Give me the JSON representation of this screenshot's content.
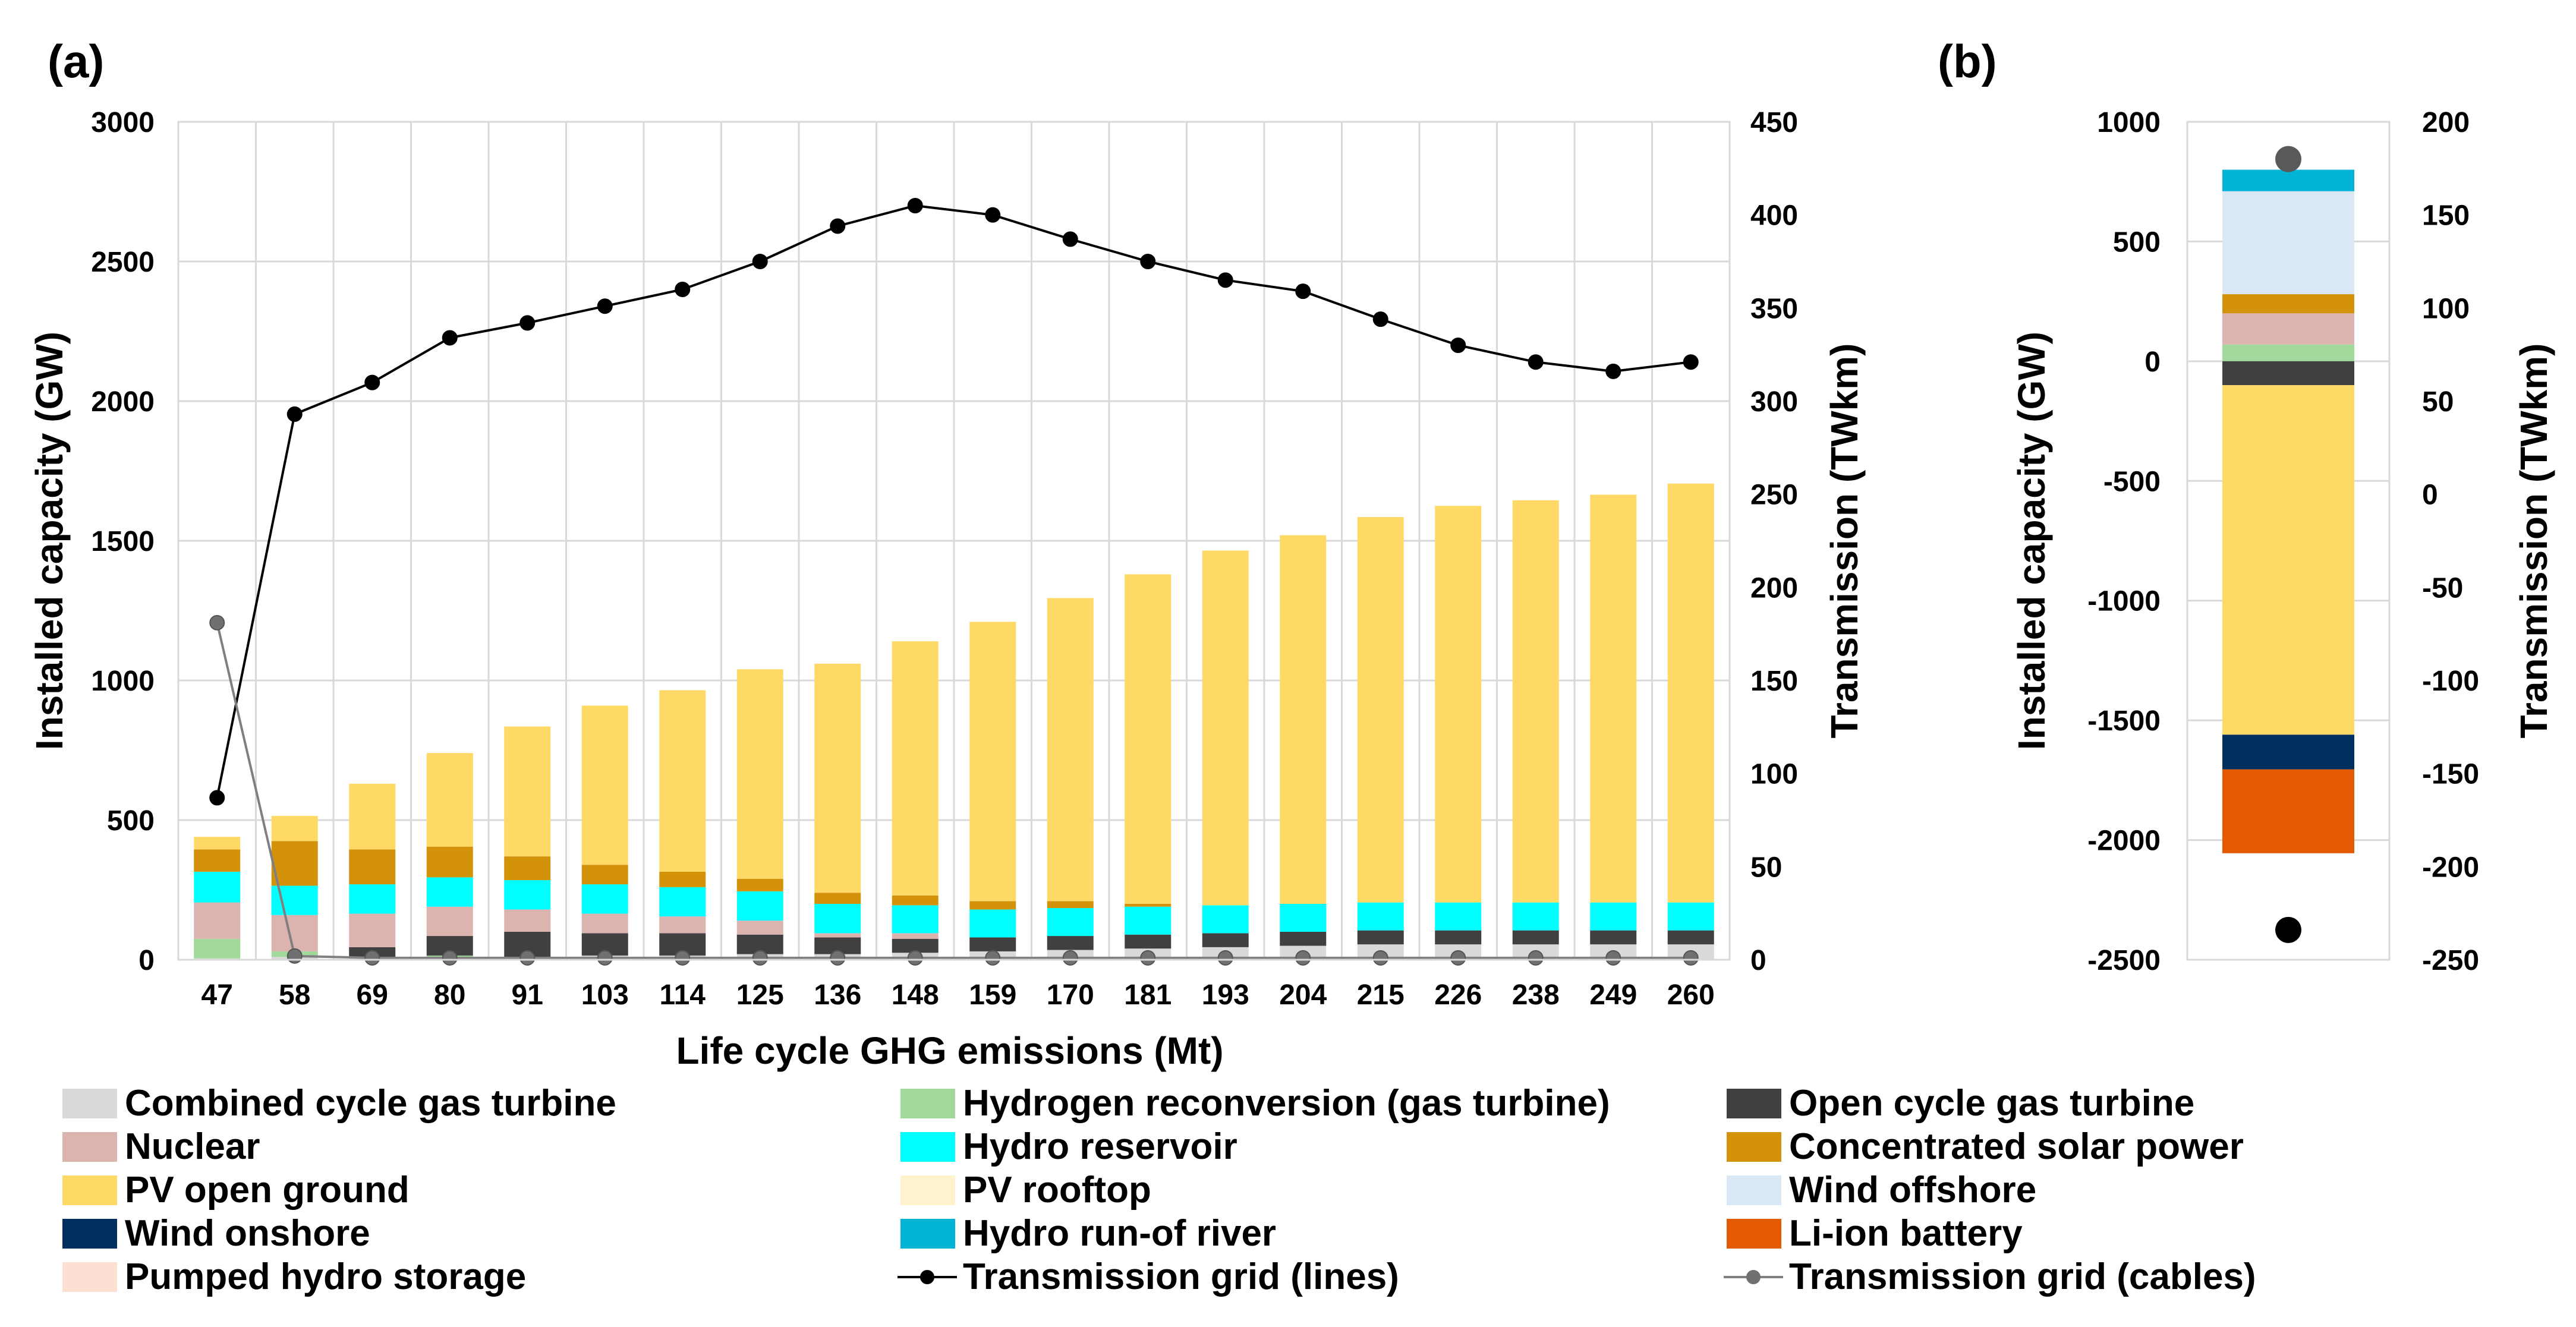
{
  "chart_data": [
    {
      "panel": "(a)",
      "type": "bar",
      "stacked": true,
      "xlabel": "Life cycle GHG emissions (Mt)",
      "ylabel": "Installed capacity (GW)",
      "y2label": "Transmission (TWkm)",
      "ylim": [
        0,
        3000
      ],
      "y2lim": [
        0,
        450
      ],
      "yticks": [
        "0",
        "500",
        "1000",
        "1500",
        "2000",
        "2500",
        "3000"
      ],
      "y2ticks": [
        "0",
        "50",
        "100",
        "150",
        "200",
        "250",
        "300",
        "350",
        "400",
        "450"
      ],
      "categories": [
        "47",
        "58",
        "69",
        "80",
        "91",
        "103",
        "114",
        "125",
        "136",
        "148",
        "159",
        "170",
        "181",
        "193",
        "204",
        "215",
        "226",
        "238",
        "249",
        "260"
      ],
      "series": [
        {
          "name": "Combined cycle gas turbine",
          "color": "#d9d9d9",
          "values": [
            5,
            10,
            5,
            10,
            10,
            15,
            15,
            20,
            20,
            25,
            30,
            35,
            40,
            45,
            50,
            55,
            55,
            55,
            55,
            55
          ]
        },
        {
          "name": "Hydrogen reconversion (gas turbine)",
          "color": "#a0d99a",
          "values": [
            70,
            20,
            0,
            5,
            0,
            0,
            0,
            0,
            0,
            0,
            0,
            0,
            0,
            0,
            0,
            0,
            0,
            0,
            0,
            0
          ]
        },
        {
          "name": "Open cycle gas turbine",
          "color": "#404040",
          "values": [
            0,
            0,
            40,
            70,
            90,
            80,
            80,
            70,
            60,
            50,
            50,
            50,
            50,
            50,
            50,
            50,
            50,
            50,
            50,
            50
          ]
        },
        {
          "name": "Nuclear",
          "color": "#dbb4b0",
          "values": [
            130,
            130,
            120,
            105,
            80,
            70,
            60,
            50,
            15,
            20,
            0,
            0,
            0,
            0,
            0,
            0,
            0,
            0,
            0,
            0
          ]
        },
        {
          "name": "Hydro reservoir",
          "color": "#00ffff",
          "values": [
            110,
            105,
            105,
            105,
            105,
            105,
            105,
            105,
            105,
            100,
            100,
            100,
            100,
            100,
            100,
            100,
            100,
            100,
            100,
            100
          ]
        },
        {
          "name": "Concentrated solar power",
          "color": "#d4920b",
          "values": [
            80,
            160,
            125,
            110,
            85,
            70,
            55,
            45,
            40,
            35,
            30,
            25,
            10,
            0,
            0,
            0,
            0,
            0,
            0,
            0
          ]
        },
        {
          "name": "PV open ground",
          "color": "#ffd966",
          "values": [
            45,
            90,
            235,
            335,
            465,
            570,
            650,
            750,
            820,
            910,
            1000,
            1085,
            1180,
            1270,
            1320,
            1380,
            1420,
            1440,
            1460,
            1500
          ]
        },
        {
          "name": "PV rooftop",
          "color": "#fff2cc",
          "values": [
            0,
            0,
            0,
            0,
            0,
            0,
            0,
            0,
            0,
            0,
            0,
            0,
            0,
            0,
            0,
            0,
            0,
            0,
            0,
            0
          ]
        },
        {
          "name": "Wind offshore",
          "color": "#dae8f5",
          "values": [
            0,
            0,
            0,
            0,
            0,
            0,
            0,
            0,
            0,
            0,
            0,
            0,
            0,
            0,
            0,
            0,
            0,
            0,
            0,
            0
          ]
        },
        {
          "name": "Wind onshore",
          "color": "#002f5f",
          "values": [
            0,
            0,
            0,
            0,
            0,
            0,
            0,
            0,
            0,
            0,
            0,
            0,
            0,
            0,
            0,
            0,
            0,
            0,
            0,
            0
          ]
        },
        {
          "name": "Hydro run-of river",
          "color": "#00b4d8",
          "values": [
            0,
            0,
            0,
            0,
            0,
            0,
            0,
            0,
            0,
            0,
            0,
            0,
            0,
            0,
            0,
            0,
            0,
            0,
            0,
            0
          ]
        },
        {
          "name": "Li-ion battery",
          "color": "#e35a00",
          "values": [
            0,
            0,
            0,
            0,
            0,
            0,
            0,
            0,
            0,
            0,
            0,
            0,
            0,
            0,
            0,
            0,
            0,
            0,
            0,
            0
          ]
        },
        {
          "name": "Pumped hydro storage",
          "color": "#fde0d2",
          "values": [
            0,
            0,
            0,
            0,
            0,
            0,
            0,
            0,
            0,
            0,
            0,
            0,
            0,
            0,
            0,
            0,
            0,
            0,
            0,
            0
          ]
        }
      ],
      "lines": [
        {
          "name": "Transmission grid (lines)",
          "axis": "y2",
          "color": "#000000",
          "marker": "#000000",
          "values": [
            87,
            293,
            310,
            334,
            342,
            351,
            360,
            375,
            394,
            405,
            400,
            387,
            375,
            365,
            359,
            344,
            330,
            321,
            316,
            321
          ]
        },
        {
          "name": "Transmission grid (cables)",
          "axis": "y2",
          "color": "#808080",
          "marker": "#707070",
          "values": [
            181,
            2,
            1,
            1,
            1,
            1,
            1,
            1,
            1,
            1,
            1,
            1,
            1,
            1,
            1,
            1,
            1,
            1,
            1,
            1
          ]
        }
      ]
    },
    {
      "panel": "(b)",
      "type": "bar",
      "stacked": true,
      "xlabel": "",
      "ylabel": "Installed capacity (GW)",
      "y2label": "Transmission (TWkm)",
      "ylim": [
        -2500,
        1000
      ],
      "y2lim": [
        -250,
        200
      ],
      "yticks": [
        "-2500",
        "-2000",
        "-1500",
        "-1000",
        "-500",
        "0",
        "500",
        "1000"
      ],
      "y2ticks": [
        "-250",
        "-200",
        "-150",
        "-100",
        "-50",
        "0",
        "50",
        "100",
        "150",
        "200"
      ],
      "positive": [
        {
          "name": "Hydrogen reconversion (gas turbine)",
          "color": "#a0d99a",
          "value": 70
        },
        {
          "name": "Nuclear",
          "color": "#dbb4b0",
          "value": 130
        },
        {
          "name": "Concentrated solar power",
          "color": "#d4920b",
          "value": 80
        },
        {
          "name": "Wind offshore",
          "color": "#dae8f5",
          "value": 430
        },
        {
          "name": "Hydro run-of river",
          "color": "#00b4d8",
          "value": 90
        }
      ],
      "negative": [
        {
          "name": "Open cycle gas turbine",
          "color": "#404040",
          "value": -100
        },
        {
          "name": "PV open ground",
          "color": "#ffd966",
          "value": -1460
        },
        {
          "name": "Wind onshore",
          "color": "#002f5f",
          "value": -145
        },
        {
          "name": "Li-ion battery",
          "color": "#e35a00",
          "value": -350
        }
      ],
      "points": [
        {
          "name": "Transmission grid (cables)",
          "axis": "y2",
          "color": "#595959",
          "value": 180
        },
        {
          "name": "Transmission grid (lines)",
          "axis": "y2",
          "color": "#000000",
          "value": -234
        }
      ]
    }
  ]
}
